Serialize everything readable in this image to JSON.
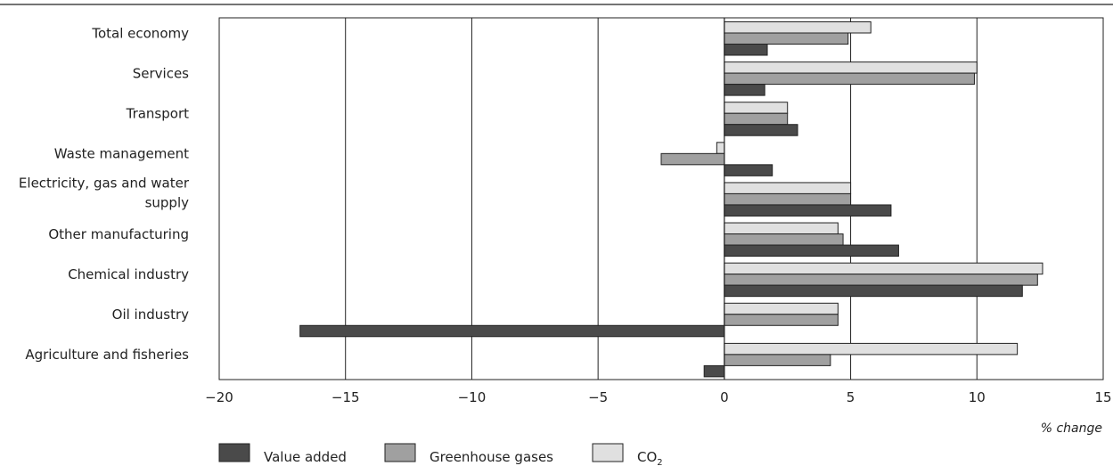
{
  "chart_data": {
    "type": "bar",
    "orientation": "horizontal",
    "categories": [
      "Total economy",
      "Services",
      "Transport",
      "Waste management",
      [
        "Electricity, gas and water",
        "supply"
      ],
      "Other manufacturing",
      "Chemical industry",
      "Oil industry",
      "Agriculture and fisheries"
    ],
    "series": [
      {
        "name": "CO",
        "name_subscript": "2",
        "color": "#e0e0e0",
        "values": [
          5.8,
          10.0,
          2.5,
          -0.3,
          5.0,
          4.5,
          12.6,
          4.5,
          11.6
        ]
      },
      {
        "name": "Greenhouse gases",
        "color": "#a0a0a0",
        "values": [
          4.9,
          9.9,
          2.5,
          -2.5,
          5.0,
          4.7,
          12.4,
          4.5,
          4.2
        ]
      },
      {
        "name": "Value added",
        "color": "#4a4a4a",
        "values": [
          1.7,
          1.6,
          2.9,
          1.9,
          6.6,
          6.9,
          11.8,
          -16.8,
          -0.8
        ]
      }
    ],
    "legend_order": [
      "Value added",
      "Greenhouse gases",
      "CO"
    ],
    "xlim": [
      -20,
      15
    ],
    "xticks": [
      -20,
      -15,
      -10,
      -5,
      0,
      5,
      10,
      15
    ],
    "xtick_labels": [
      "−20",
      "−15",
      "−10",
      "−5",
      "0",
      "5",
      "10",
      "15"
    ],
    "xlabel": "% change",
    "grid": "vertical",
    "legend_position": "bottom-left"
  }
}
